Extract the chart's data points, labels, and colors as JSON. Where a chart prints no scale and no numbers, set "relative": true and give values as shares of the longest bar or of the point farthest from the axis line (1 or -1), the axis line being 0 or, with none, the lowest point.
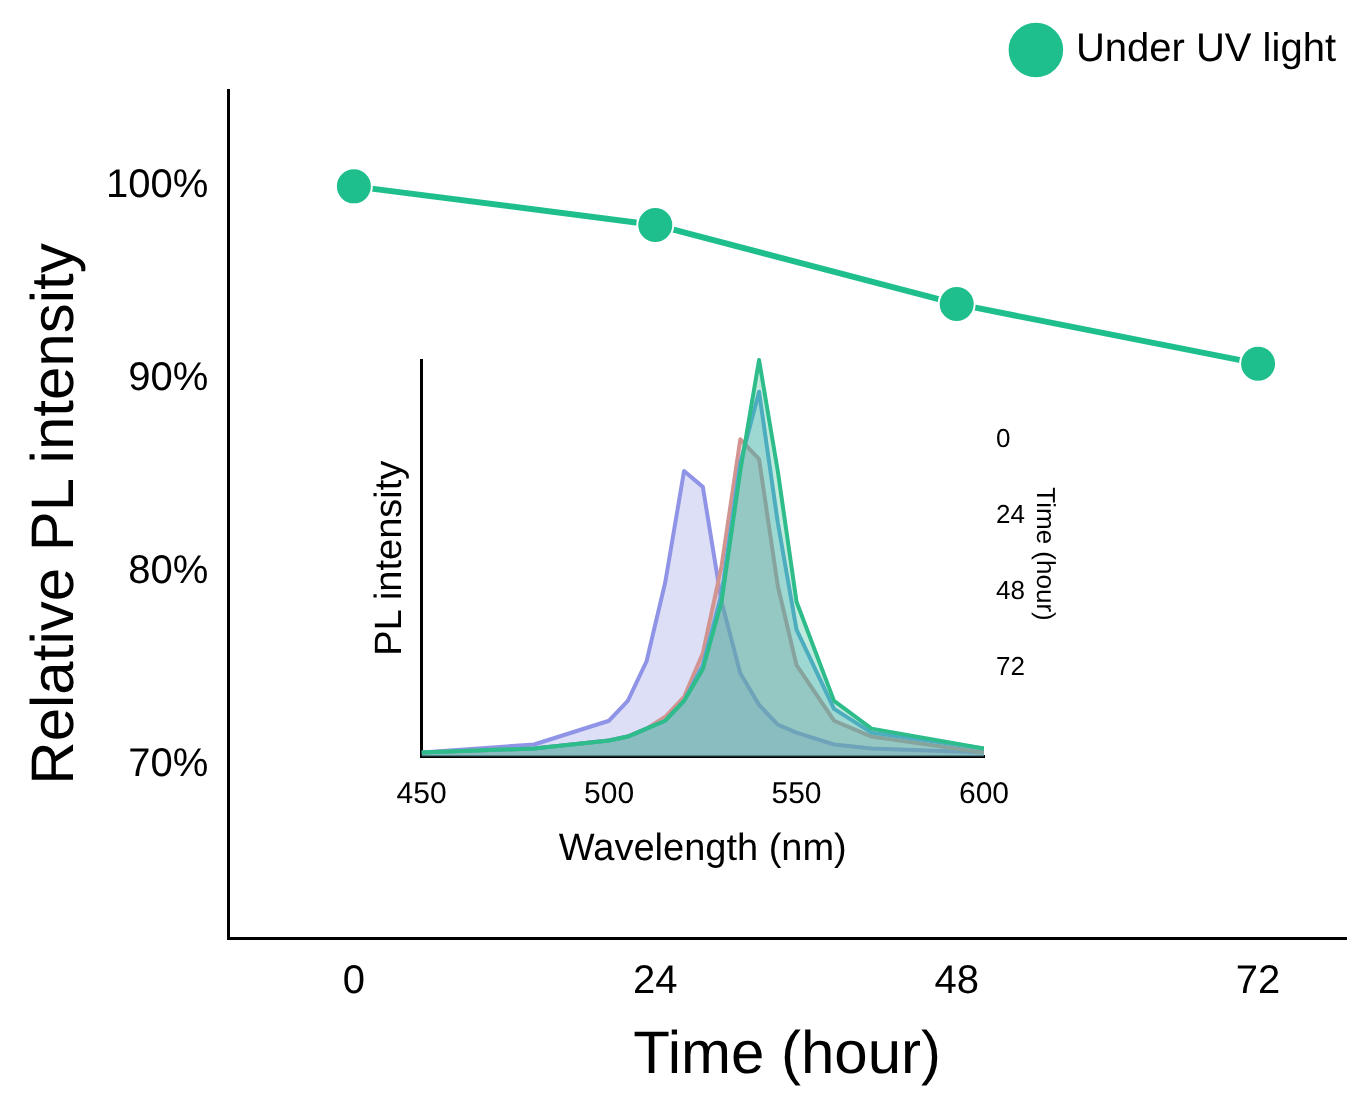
{
  "chart_data": [
    {
      "type": "line",
      "xlabel": "Time (hour)",
      "ylabel": "Relative PL intensity",
      "x": [
        0,
        24,
        48,
        72
      ],
      "series": [
        {
          "name": "Under UV light",
          "color": "#1ebf8c",
          "values": [
            100,
            98,
            93.9,
            90.8
          ]
        }
      ],
      "xlim": [
        -10,
        79
      ],
      "xticks": [
        0,
        24,
        48,
        72
      ],
      "ylim": [
        61,
        105
      ],
      "yticks": [
        {
          "value": 70,
          "label": "70%"
        },
        {
          "value": 80,
          "label": "80%"
        },
        {
          "value": 90,
          "label": "90%"
        },
        {
          "value": 100,
          "label": "100%"
        }
      ],
      "grid": false,
      "legend": "top right",
      "marker": "circle",
      "line_style": "solid"
    },
    {
      "type": "area",
      "relative": true,
      "xlabel": "Wavelength (nm)",
      "ylabel": "PL intensity",
      "legend_title": "Time (hour)",
      "legend": false,
      "grid": false,
      "x": [
        450,
        480,
        500,
        505,
        510,
        515,
        520,
        525,
        530,
        535,
        540,
        545,
        550,
        560,
        570,
        600
      ],
      "xlim": [
        450,
        600
      ],
      "xticks": [
        450,
        500,
        550,
        600
      ],
      "series": [
        {
          "name": "0",
          "color": "#2ebd8a",
          "values": [
            0.01,
            0.02,
            0.04,
            0.05,
            0.07,
            0.09,
            0.14,
            0.22,
            0.39,
            0.72,
            1,
            0.72,
            0.39,
            0.14,
            0.07,
            0.02
          ]
        },
        {
          "name": "24",
          "color": "#5aa6d6",
          "values": [
            0.01,
            0.02,
            0.04,
            0.05,
            0.07,
            0.09,
            0.14,
            0.23,
            0.41,
            0.74,
            0.92,
            0.59,
            0.32,
            0.12,
            0.06,
            0.02
          ]
        },
        {
          "name": "48",
          "color": "#d29490",
          "values": [
            0.01,
            0.02,
            0.04,
            0.05,
            0.07,
            0.1,
            0.15,
            0.26,
            0.48,
            0.8,
            0.75,
            0.43,
            0.23,
            0.09,
            0.05,
            0.01
          ]
        },
        {
          "name": "72",
          "color": "#8f94e6",
          "values": [
            0.01,
            0.03,
            0.09,
            0.14,
            0.24,
            0.44,
            0.72,
            0.68,
            0.39,
            0.21,
            0.13,
            0.08,
            0.06,
            0.03,
            0.02,
            0.01
          ]
        }
      ]
    }
  ]
}
